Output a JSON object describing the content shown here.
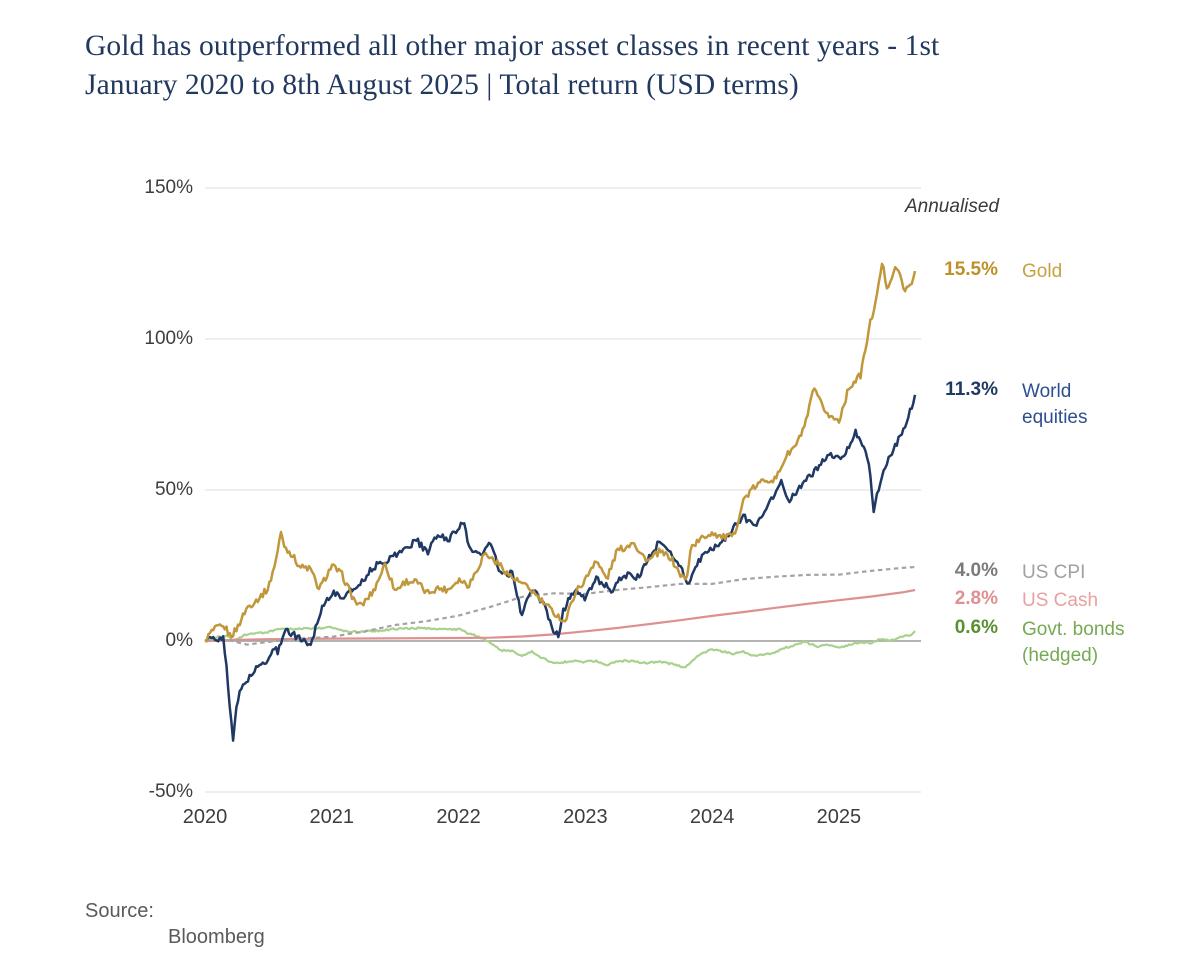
{
  "title": {
    "line1": "Gold has outperformed all other major asset classes in recent years - 1st",
    "line2": "January 2020 to 8th August 2025 | Total return (USD terms)"
  },
  "source": {
    "label": "Source:",
    "value": "Bloomberg"
  },
  "chart_data": {
    "type": "line",
    "title": "Gold has outperformed all other major asset classes in recent years - 1st January 2020 to 8th August 2025 | Total return (USD terms)",
    "annotation": "Annualised",
    "x_axis": {
      "unit": "year",
      "range": [
        2020.0,
        2025.6
      ],
      "ticks": [
        2020,
        2021,
        2022,
        2023,
        2024,
        2025
      ],
      "tick_labels": [
        "2020",
        "2021",
        "2022",
        "2023",
        "2024",
        "2025"
      ]
    },
    "y_axis": {
      "unit": "percent total return (USD)",
      "range": [
        -50,
        150
      ],
      "ticks": [
        150,
        100,
        50,
        0,
        -50
      ],
      "tick_labels": [
        "150%",
        "100%",
        "50%",
        "0%",
        "-50%"
      ],
      "gridline_color": "#dcdcdc",
      "zero_line_color": "#a8a8a8"
    },
    "legend_position": "right",
    "series": [
      {
        "name": "Gold",
        "annualised_label": "15.5%",
        "label_lines": [
          "Gold"
        ],
        "color": "#c0973b",
        "pct_color": "#bd9127",
        "label_color": "#c8a041",
        "style": "solid",
        "width": 2.5,
        "noise": 1.1,
        "points": [
          [
            2020.0,
            0
          ],
          [
            2020.05,
            3
          ],
          [
            2020.1,
            4.5
          ],
          [
            2020.16,
            4.5
          ],
          [
            2020.2,
            1.5
          ],
          [
            2020.25,
            4
          ],
          [
            2020.33,
            11
          ],
          [
            2020.42,
            14
          ],
          [
            2020.5,
            17.5
          ],
          [
            2020.56,
            27
          ],
          [
            2020.6,
            36
          ],
          [
            2020.63,
            31
          ],
          [
            2020.67,
            29.5
          ],
          [
            2020.75,
            24.5
          ],
          [
            2020.83,
            24
          ],
          [
            2020.9,
            17
          ],
          [
            2021.0,
            25
          ],
          [
            2021.08,
            22
          ],
          [
            2021.17,
            14
          ],
          [
            2021.22,
            11.5
          ],
          [
            2021.25,
            12.5
          ],
          [
            2021.33,
            16.6
          ],
          [
            2021.42,
            25.6
          ],
          [
            2021.5,
            16.6
          ],
          [
            2021.58,
            19.7
          ],
          [
            2021.67,
            19.6
          ],
          [
            2021.75,
            15.8
          ],
          [
            2021.83,
            17.5
          ],
          [
            2021.92,
            17
          ],
          [
            2022.0,
            20.5
          ],
          [
            2022.08,
            18.5
          ],
          [
            2022.17,
            25.7
          ],
          [
            2022.2,
            29
          ],
          [
            2022.25,
            27.7
          ],
          [
            2022.33,
            25
          ],
          [
            2022.42,
            21
          ],
          [
            2022.5,
            19
          ],
          [
            2022.58,
            16.5
          ],
          [
            2022.67,
            12.6
          ],
          [
            2022.75,
            9.5
          ],
          [
            2022.84,
            6.3
          ],
          [
            2022.92,
            16.2
          ],
          [
            2023.0,
            20.2
          ],
          [
            2023.08,
            27
          ],
          [
            2023.17,
            20.4
          ],
          [
            2023.25,
            30
          ],
          [
            2023.33,
            31.2
          ],
          [
            2023.38,
            33.5
          ],
          [
            2023.42,
            29.5
          ],
          [
            2023.5,
            26.5
          ],
          [
            2023.58,
            29.5
          ],
          [
            2023.67,
            27.8
          ],
          [
            2023.75,
            21.9
          ],
          [
            2023.8,
            20
          ],
          [
            2023.83,
            31
          ],
          [
            2023.92,
            34
          ],
          [
            2024.0,
            36
          ],
          [
            2024.08,
            34.3
          ],
          [
            2024.17,
            34.7
          ],
          [
            2024.25,
            47
          ],
          [
            2024.33,
            50.8
          ],
          [
            2024.42,
            53.6
          ],
          [
            2024.5,
            53.4
          ],
          [
            2024.58,
            61
          ],
          [
            2024.67,
            65.3
          ],
          [
            2024.75,
            73.5
          ],
          [
            2024.8,
            84
          ],
          [
            2024.83,
            80.7
          ],
          [
            2024.92,
            74.5
          ],
          [
            2025.0,
            73
          ],
          [
            2025.08,
            84
          ],
          [
            2025.17,
            88
          ],
          [
            2025.25,
            105.8
          ],
          [
            2025.3,
            114
          ],
          [
            2025.34,
            125.5
          ],
          [
            2025.38,
            117
          ],
          [
            2025.42,
            121
          ],
          [
            2025.46,
            124
          ],
          [
            2025.5,
            118
          ],
          [
            2025.54,
            116
          ],
          [
            2025.58,
            119
          ],
          [
            2025.6,
            122.5
          ]
        ]
      },
      {
        "name": "World equities",
        "annualised_label": "11.3%",
        "label_lines": [
          "World",
          "equities"
        ],
        "color": "#1f3864",
        "pct_color": "#1f3864",
        "label_color": "#2d4f8e",
        "style": "solid",
        "width": 2.5,
        "noise": 1.1,
        "points": [
          [
            2020.0,
            0
          ],
          [
            2020.05,
            1
          ],
          [
            2020.1,
            -0.6
          ],
          [
            2020.14,
            2
          ],
          [
            2020.17,
            -9
          ],
          [
            2020.22,
            -32.5
          ],
          [
            2020.25,
            -22
          ],
          [
            2020.28,
            -16
          ],
          [
            2020.33,
            -13
          ],
          [
            2020.42,
            -8.5
          ],
          [
            2020.5,
            -6
          ],
          [
            2020.54,
            -2.5
          ],
          [
            2020.58,
            -3.5
          ],
          [
            2020.63,
            4.5
          ],
          [
            2020.67,
            2.5
          ],
          [
            2020.75,
            1
          ],
          [
            2020.83,
            -1.5
          ],
          [
            2020.92,
            11
          ],
          [
            2021.0,
            16
          ],
          [
            2021.08,
            14.5
          ],
          [
            2021.17,
            17
          ],
          [
            2021.25,
            20.5
          ],
          [
            2021.33,
            24.5
          ],
          [
            2021.42,
            26.5
          ],
          [
            2021.5,
            28.5
          ],
          [
            2021.58,
            30.5
          ],
          [
            2021.67,
            33.5
          ],
          [
            2021.75,
            29
          ],
          [
            2021.83,
            35
          ],
          [
            2021.92,
            33.5
          ],
          [
            2022.0,
            38
          ],
          [
            2022.04,
            39
          ],
          [
            2022.08,
            31.5
          ],
          [
            2022.17,
            28
          ],
          [
            2022.25,
            32.5
          ],
          [
            2022.33,
            22
          ],
          [
            2022.42,
            22.5
          ],
          [
            2022.5,
            8.5
          ],
          [
            2022.58,
            17.5
          ],
          [
            2022.67,
            12
          ],
          [
            2022.75,
            3.5
          ],
          [
            2022.79,
            2
          ],
          [
            2022.83,
            10.5
          ],
          [
            2022.92,
            17.5
          ],
          [
            2023.0,
            13.5
          ],
          [
            2023.08,
            21
          ],
          [
            2023.17,
            18
          ],
          [
            2023.21,
            14.5
          ],
          [
            2023.25,
            20
          ],
          [
            2023.33,
            22
          ],
          [
            2023.42,
            21
          ],
          [
            2023.5,
            27.5
          ],
          [
            2023.58,
            32.5
          ],
          [
            2023.67,
            29.5
          ],
          [
            2023.75,
            24.5
          ],
          [
            2023.81,
            19
          ],
          [
            2023.88,
            25
          ],
          [
            2023.92,
            28
          ],
          [
            2024.0,
            30.5
          ],
          [
            2024.08,
            33
          ],
          [
            2024.17,
            37.5
          ],
          [
            2024.25,
            41.5
          ],
          [
            2024.33,
            37.5
          ],
          [
            2024.42,
            44
          ],
          [
            2024.5,
            48.5
          ],
          [
            2024.54,
            53.3
          ],
          [
            2024.6,
            45.7
          ],
          [
            2024.67,
            50
          ],
          [
            2024.75,
            53.5
          ],
          [
            2024.83,
            57.5
          ],
          [
            2024.92,
            62
          ],
          [
            2025.0,
            60
          ],
          [
            2025.08,
            64.5
          ],
          [
            2025.13,
            69.5
          ],
          [
            2025.17,
            66
          ],
          [
            2025.24,
            59
          ],
          [
            2025.27,
            43
          ],
          [
            2025.33,
            53
          ],
          [
            2025.42,
            63
          ],
          [
            2025.5,
            69
          ],
          [
            2025.54,
            73
          ],
          [
            2025.6,
            81.5
          ]
        ]
      },
      {
        "name": "US CPI",
        "annualised_label": "4.0%",
        "label_lines": [
          "US CPI"
        ],
        "color": "#a3a3a3",
        "pct_color": "#7a7a7a",
        "label_color": "#a0a0a0",
        "style": "dashed",
        "width": 2.2,
        "noise": 0,
        "points": [
          [
            2020.0,
            0
          ],
          [
            2020.17,
            0.5
          ],
          [
            2020.33,
            -1.2
          ],
          [
            2020.5,
            -0.3
          ],
          [
            2020.75,
            0.8
          ],
          [
            2021.0,
            1.4
          ],
          [
            2021.25,
            3.1
          ],
          [
            2021.5,
            5.3
          ],
          [
            2021.75,
            6.6
          ],
          [
            2022.0,
            8.4
          ],
          [
            2022.25,
            11.3
          ],
          [
            2022.5,
            14.6
          ],
          [
            2022.75,
            15.8
          ],
          [
            2023.0,
            15.6
          ],
          [
            2023.25,
            16.9
          ],
          [
            2023.5,
            17.8
          ],
          [
            2023.75,
            18.9
          ],
          [
            2024.0,
            18.9
          ],
          [
            2024.25,
            20.5
          ],
          [
            2024.5,
            21.3
          ],
          [
            2024.75,
            21.9
          ],
          [
            2025.0,
            22.0
          ],
          [
            2025.25,
            23.2
          ],
          [
            2025.5,
            24.2
          ],
          [
            2025.6,
            24.5
          ]
        ]
      },
      {
        "name": "US Cash",
        "annualised_label": "2.8%",
        "label_lines": [
          "US Cash"
        ],
        "color": "#dd9090",
        "pct_color": "#e09090",
        "label_color": "#e8a0a0",
        "style": "solid",
        "width": 2.2,
        "noise": 0,
        "points": [
          [
            2020.0,
            0
          ],
          [
            2020.25,
            0.4
          ],
          [
            2020.5,
            0.6
          ],
          [
            2021.0,
            0.8
          ],
          [
            2021.5,
            0.9
          ],
          [
            2022.0,
            1.0
          ],
          [
            2022.25,
            1.1
          ],
          [
            2022.5,
            1.5
          ],
          [
            2022.75,
            2.2
          ],
          [
            2023.0,
            3.2
          ],
          [
            2023.25,
            4.3
          ],
          [
            2023.5,
            5.6
          ],
          [
            2023.75,
            6.9
          ],
          [
            2024.0,
            8.3
          ],
          [
            2024.25,
            9.6
          ],
          [
            2024.5,
            11.0
          ],
          [
            2024.75,
            12.3
          ],
          [
            2025.0,
            13.5
          ],
          [
            2025.25,
            14.7
          ],
          [
            2025.5,
            16.1
          ],
          [
            2025.6,
            16.9
          ]
        ]
      },
      {
        "name": "Govt. bonds (hedged)",
        "annualised_label": "0.6%",
        "label_lines": [
          "Govt. bonds",
          "(hedged)"
        ],
        "color": "#a9d18e",
        "pct_color": "#589032",
        "label_color": "#76a954",
        "style": "solid",
        "width": 2.2,
        "noise": 0.3,
        "points": [
          [
            2020.0,
            0
          ],
          [
            2020.08,
            1.2
          ],
          [
            2020.17,
            1.8
          ],
          [
            2020.22,
            0.3
          ],
          [
            2020.33,
            2.2
          ],
          [
            2020.5,
            3.0
          ],
          [
            2020.58,
            3.8
          ],
          [
            2020.75,
            4.0
          ],
          [
            2020.92,
            4.3
          ],
          [
            2021.0,
            4.5
          ],
          [
            2021.08,
            3.4
          ],
          [
            2021.17,
            3.0
          ],
          [
            2021.33,
            3.3
          ],
          [
            2021.5,
            4.0
          ],
          [
            2021.67,
            4.3
          ],
          [
            2021.83,
            3.8
          ],
          [
            2022.0,
            3.9
          ],
          [
            2022.08,
            2.5
          ],
          [
            2022.17,
            1.3
          ],
          [
            2022.25,
            -0.8
          ],
          [
            2022.33,
            -3.0
          ],
          [
            2022.42,
            -3.3
          ],
          [
            2022.5,
            -5.0
          ],
          [
            2022.58,
            -3.6
          ],
          [
            2022.67,
            -5.8
          ],
          [
            2022.75,
            -7.5
          ],
          [
            2022.83,
            -7.0
          ],
          [
            2022.92,
            -6.5
          ],
          [
            2023.0,
            -7.0
          ],
          [
            2023.08,
            -6.5
          ],
          [
            2023.17,
            -8.0
          ],
          [
            2023.25,
            -6.8
          ],
          [
            2023.33,
            -6.5
          ],
          [
            2023.42,
            -7.0
          ],
          [
            2023.5,
            -7.2
          ],
          [
            2023.58,
            -7.0
          ],
          [
            2023.67,
            -7.5
          ],
          [
            2023.75,
            -8.3
          ],
          [
            2023.79,
            -8.6
          ],
          [
            2023.83,
            -7.0
          ],
          [
            2023.92,
            -4.0
          ],
          [
            2024.0,
            -2.8
          ],
          [
            2024.08,
            -3.5
          ],
          [
            2024.17,
            -4.2
          ],
          [
            2024.25,
            -3.6
          ],
          [
            2024.33,
            -5.0
          ],
          [
            2024.42,
            -4.4
          ],
          [
            2024.5,
            -3.8
          ],
          [
            2024.58,
            -2.2
          ],
          [
            2024.67,
            -1.2
          ],
          [
            2024.71,
            -0.3
          ],
          [
            2024.75,
            -0.6
          ],
          [
            2024.83,
            -1.8
          ],
          [
            2024.92,
            -1.2
          ],
          [
            2025.0,
            -2.0
          ],
          [
            2025.08,
            -1.4
          ],
          [
            2025.17,
            -0.4
          ],
          [
            2025.25,
            -0.6
          ],
          [
            2025.33,
            0.6
          ],
          [
            2025.42,
            0.3
          ],
          [
            2025.5,
            1.6
          ],
          [
            2025.58,
            2.2
          ],
          [
            2025.6,
            3.3
          ]
        ]
      }
    ]
  }
}
